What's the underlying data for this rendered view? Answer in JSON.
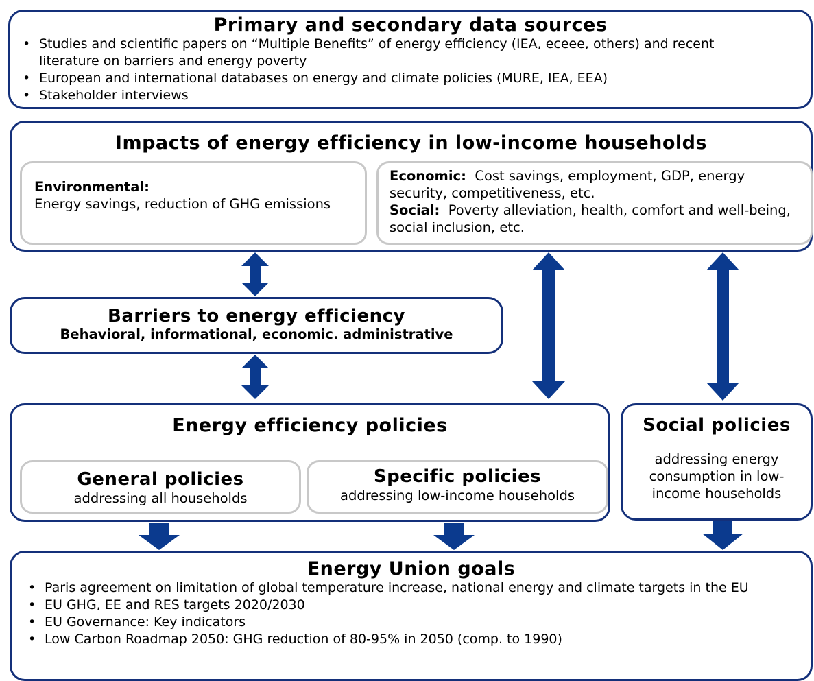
{
  "sources": {
    "title": "Primary and secondary data sources",
    "bullets": [
      "Studies and scientific papers on “Multiple Benefits” of energy efficiency (IEA, eceee, others) and recent literature on barriers and energy poverty",
      "European and international databases on energy and climate policies (MURE, IEA, EEA)",
      "Stakeholder interviews"
    ]
  },
  "impacts": {
    "title": "Impacts of energy efficiency in low-income households",
    "environmental": {
      "label": "Environmental:",
      "text": "Energy savings, reduction of GHG emissions"
    },
    "economic": {
      "label": "Economic:",
      "text": "Cost savings, employment, GDP, energy security, competitiveness, etc."
    },
    "social": {
      "label": "Social:",
      "text": "Poverty alleviation, health, comfort and well-being, social inclusion, etc."
    }
  },
  "barriers": {
    "title": "Barriers to energy efficiency",
    "subtitle": "Behavioral, informational, economic. administrative"
  },
  "ee_policies": {
    "title": "Energy efficiency policies",
    "general": {
      "title": "General policies",
      "text": "addressing all households"
    },
    "specific": {
      "title": "Specific policies",
      "text": "addressing low-income households"
    }
  },
  "social_policies": {
    "title": "Social policies",
    "text": "addressing energy consumption in low-income households"
  },
  "goals": {
    "title": "Energy Union goals",
    "bullets": [
      "Paris agreement on limitation of global temperature increase, national energy and climate targets in the EU",
      "EU GHG, EE and RES targets 2020/2030",
      "EU Governance: Key indicators",
      "Low Carbon Roadmap 2050: GHG reduction of 80-95% in 2050 (comp. to 1990)"
    ]
  }
}
